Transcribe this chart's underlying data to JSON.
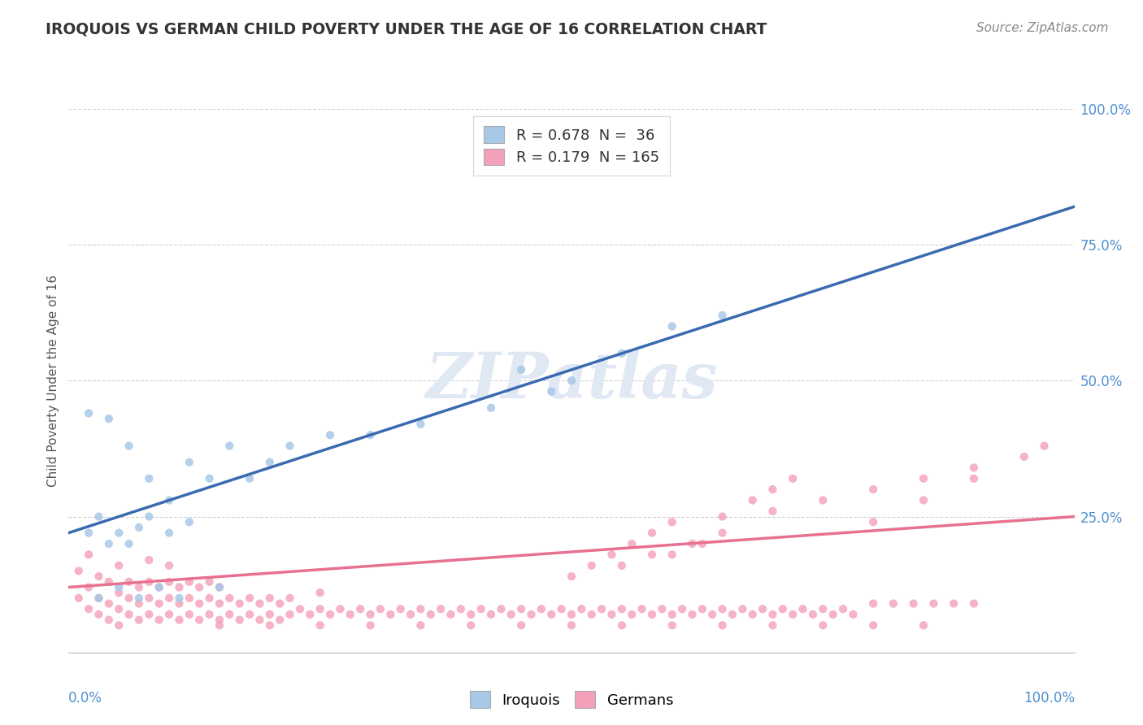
{
  "title": "IROQUOIS VS GERMAN CHILD POVERTY UNDER THE AGE OF 16 CORRELATION CHART",
  "source": "Source: ZipAtlas.com",
  "ylabel": "Child Poverty Under the Age of 16",
  "legend_bottom": [
    "Iroquois",
    "Germans"
  ],
  "iroquois_R": 0.678,
  "iroquois_N": 36,
  "german_R": 0.179,
  "german_N": 165,
  "iroquois_color": "#a8c8e8",
  "german_color": "#f4a0b8",
  "iroquois_line_color": "#3a6ab0",
  "german_line_color": "#e87090",
  "background_color": "#ffffff",
  "grid_color": "#cccccc",
  "tick_color": "#5090d0",
  "title_color": "#333333",
  "source_color": "#888888",
  "watermark_color": "#e0e8f4",
  "ylim": [
    0,
    1.0
  ],
  "xlim": [
    0,
    1.0
  ],
  "yticks": [
    0.0,
    0.25,
    0.5,
    0.75,
    1.0
  ],
  "ytick_labels": [
    "",
    "25.0%",
    "50.0%",
    "75.0%",
    "100.0%"
  ],
  "iro_line_x0": 0.0,
  "iro_line_y0": 0.22,
  "iro_line_x1": 1.0,
  "iro_line_y1": 0.82,
  "ger_line_x0": 0.0,
  "ger_line_y0": 0.12,
  "ger_line_x1": 1.0,
  "ger_line_y1": 0.25,
  "iroquois_scatter_x": [
    0.02,
    0.03,
    0.04,
    0.05,
    0.06,
    0.07,
    0.08,
    0.02,
    0.04,
    0.06,
    0.08,
    0.1,
    0.12,
    0.14,
    0.16,
    0.1,
    0.12,
    0.18,
    0.2,
    0.22,
    0.26,
    0.3,
    0.35,
    0.42,
    0.48,
    0.45,
    0.5,
    0.55,
    0.6,
    0.65,
    0.03,
    0.05,
    0.07,
    0.09,
    0.11,
    0.15
  ],
  "iroquois_scatter_y": [
    0.22,
    0.25,
    0.2,
    0.22,
    0.2,
    0.23,
    0.25,
    0.44,
    0.43,
    0.38,
    0.32,
    0.28,
    0.35,
    0.32,
    0.38,
    0.22,
    0.24,
    0.32,
    0.35,
    0.38,
    0.4,
    0.4,
    0.42,
    0.45,
    0.48,
    0.52,
    0.5,
    0.55,
    0.6,
    0.62,
    0.1,
    0.12,
    0.1,
    0.12,
    0.1,
    0.12
  ],
  "german_scatter_x": [
    0.01,
    0.01,
    0.02,
    0.02,
    0.02,
    0.03,
    0.03,
    0.03,
    0.04,
    0.04,
    0.04,
    0.05,
    0.05,
    0.05,
    0.05,
    0.06,
    0.06,
    0.06,
    0.07,
    0.07,
    0.07,
    0.08,
    0.08,
    0.08,
    0.08,
    0.09,
    0.09,
    0.09,
    0.1,
    0.1,
    0.1,
    0.1,
    0.11,
    0.11,
    0.11,
    0.12,
    0.12,
    0.12,
    0.13,
    0.13,
    0.13,
    0.14,
    0.14,
    0.14,
    0.15,
    0.15,
    0.15,
    0.16,
    0.16,
    0.17,
    0.17,
    0.18,
    0.18,
    0.19,
    0.19,
    0.2,
    0.2,
    0.21,
    0.21,
    0.22,
    0.22,
    0.23,
    0.24,
    0.25,
    0.25,
    0.26,
    0.27,
    0.28,
    0.29,
    0.3,
    0.31,
    0.32,
    0.33,
    0.34,
    0.35,
    0.36,
    0.37,
    0.38,
    0.39,
    0.4,
    0.41,
    0.42,
    0.43,
    0.44,
    0.45,
    0.46,
    0.47,
    0.48,
    0.49,
    0.5,
    0.51,
    0.52,
    0.53,
    0.54,
    0.55,
    0.56,
    0.57,
    0.58,
    0.59,
    0.6,
    0.61,
    0.62,
    0.63,
    0.64,
    0.65,
    0.66,
    0.67,
    0.68,
    0.69,
    0.7,
    0.71,
    0.72,
    0.73,
    0.74,
    0.75,
    0.76,
    0.77,
    0.78,
    0.8,
    0.82,
    0.84,
    0.86,
    0.88,
    0.9,
    0.6,
    0.62,
    0.65,
    0.68,
    0.7,
    0.72,
    0.55,
    0.58,
    0.63,
    0.65,
    0.5,
    0.52,
    0.54,
    0.56,
    0.58,
    0.6,
    0.7,
    0.75,
    0.8,
    0.85,
    0.9,
    0.95,
    0.97,
    0.8,
    0.85,
    0.9,
    0.15,
    0.2,
    0.25,
    0.3,
    0.35,
    0.4,
    0.45,
    0.5,
    0.55,
    0.6,
    0.65,
    0.7,
    0.75,
    0.8,
    0.85
  ],
  "german_scatter_y": [
    0.1,
    0.15,
    0.08,
    0.12,
    0.18,
    0.07,
    0.1,
    0.14,
    0.06,
    0.09,
    0.13,
    0.05,
    0.08,
    0.11,
    0.16,
    0.07,
    0.1,
    0.13,
    0.06,
    0.09,
    0.12,
    0.07,
    0.1,
    0.13,
    0.17,
    0.06,
    0.09,
    0.12,
    0.07,
    0.1,
    0.13,
    0.16,
    0.06,
    0.09,
    0.12,
    0.07,
    0.1,
    0.13,
    0.06,
    0.09,
    0.12,
    0.07,
    0.1,
    0.13,
    0.06,
    0.09,
    0.12,
    0.07,
    0.1,
    0.06,
    0.09,
    0.07,
    0.1,
    0.06,
    0.09,
    0.07,
    0.1,
    0.06,
    0.09,
    0.07,
    0.1,
    0.08,
    0.07,
    0.08,
    0.11,
    0.07,
    0.08,
    0.07,
    0.08,
    0.07,
    0.08,
    0.07,
    0.08,
    0.07,
    0.08,
    0.07,
    0.08,
    0.07,
    0.08,
    0.07,
    0.08,
    0.07,
    0.08,
    0.07,
    0.08,
    0.07,
    0.08,
    0.07,
    0.08,
    0.07,
    0.08,
    0.07,
    0.08,
    0.07,
    0.08,
    0.07,
    0.08,
    0.07,
    0.08,
    0.07,
    0.08,
    0.07,
    0.08,
    0.07,
    0.08,
    0.07,
    0.08,
    0.07,
    0.08,
    0.07,
    0.08,
    0.07,
    0.08,
    0.07,
    0.08,
    0.07,
    0.08,
    0.07,
    0.09,
    0.09,
    0.09,
    0.09,
    0.09,
    0.09,
    0.18,
    0.2,
    0.25,
    0.28,
    0.3,
    0.32,
    0.16,
    0.18,
    0.2,
    0.22,
    0.14,
    0.16,
    0.18,
    0.2,
    0.22,
    0.24,
    0.26,
    0.28,
    0.3,
    0.32,
    0.34,
    0.36,
    0.38,
    0.24,
    0.28,
    0.32,
    0.05,
    0.05,
    0.05,
    0.05,
    0.05,
    0.05,
    0.05,
    0.05,
    0.05,
    0.05,
    0.05,
    0.05,
    0.05,
    0.05,
    0.05
  ]
}
